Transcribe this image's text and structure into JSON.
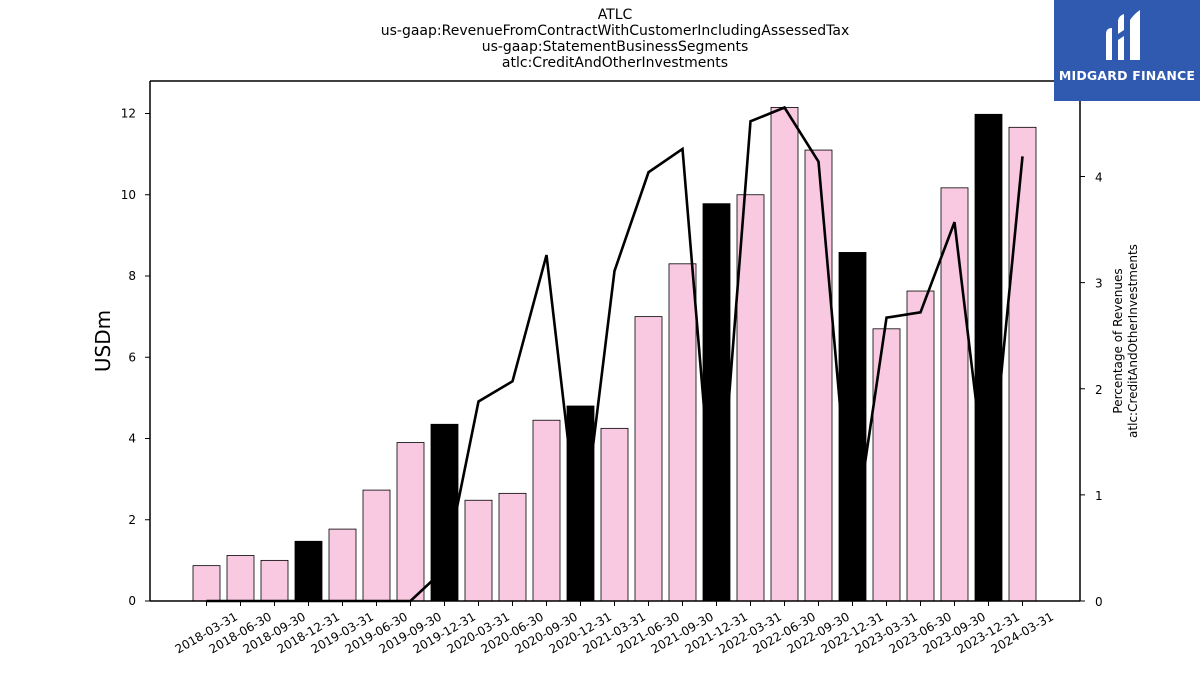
{
  "titles": {
    "line1": "ATLC",
    "line2": "us-gaap:RevenueFromContractWithCustomerIncludingAssessedTax",
    "line3": "us-gaap:StatementBusinessSegments",
    "line4": "atlc:CreditAndOtherInvestments"
  },
  "logo": {
    "text": "MIDGARD FINANCE",
    "bg_color": "#2f5ab0"
  },
  "chart_data": {
    "type": "bar",
    "ylabel": "USDm",
    "y2label_line1": "Percentage of Revenues",
    "y2label_line2": "atlc:CreditAndOtherInvestments",
    "ylim": [
      0,
      12.8
    ],
    "y2lim": [
      0,
      4.9
    ],
    "yticks": [
      0,
      2,
      4,
      6,
      8,
      10,
      12
    ],
    "y2ticks": [
      0,
      1,
      2,
      3,
      4
    ],
    "categories": [
      "2018-03-31",
      "2018-06-30",
      "2018-09-30",
      "2018-12-31",
      "2019-03-31",
      "2019-06-30",
      "2019-09-30",
      "2019-12-31",
      "2020-03-31",
      "2020-06-30",
      "2020-09-30",
      "2020-12-31",
      "2021-03-31",
      "2021-06-30",
      "2021-09-30",
      "2021-12-31",
      "2022-03-31",
      "2022-06-30",
      "2022-09-30",
      "2022-12-31",
      "2023-03-31",
      "2023-06-30",
      "2023-09-30",
      "2023-12-31",
      "2024-03-31"
    ],
    "bar_values": [
      0.87,
      1.12,
      1.0,
      1.47,
      1.77,
      2.73,
      3.9,
      4.35,
      2.48,
      2.65,
      4.45,
      4.8,
      4.25,
      7.0,
      8.3,
      9.78,
      10.0,
      12.15,
      11.1,
      8.58,
      6.7,
      7.63,
      10.17,
      11.98,
      11.66
    ],
    "bar_highlight": [
      false,
      false,
      false,
      true,
      false,
      false,
      false,
      true,
      false,
      false,
      false,
      true,
      false,
      false,
      false,
      true,
      false,
      false,
      false,
      true,
      false,
      false,
      false,
      true,
      false
    ],
    "line_values": [
      0,
      0,
      0,
      0,
      0,
      0,
      0,
      0.3,
      1.88,
      2.07,
      3.26,
      0.5,
      3.11,
      4.04,
      4.26,
      0.4,
      4.52,
      4.65,
      4.14,
      0.5,
      2.67,
      2.72,
      3.57,
      0.9,
      4.19
    ],
    "colors": {
      "bar": "#f9c8e1",
      "bar_highlight": "#000000",
      "line": "#000000"
    }
  }
}
